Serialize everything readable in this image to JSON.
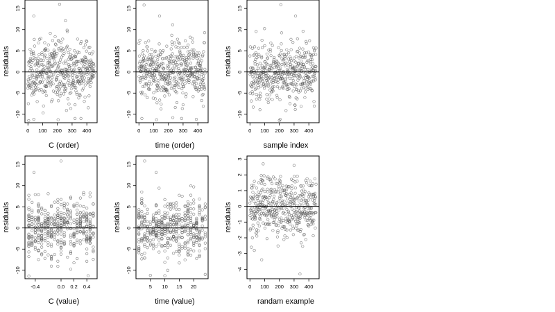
{
  "chart_data": [
    {
      "type": "scatter",
      "xlabel": "C (order)",
      "ylabel": "residuals",
      "xlim": [
        -20,
        470
      ],
      "ylim": [
        -12,
        17
      ],
      "xticks": [
        0,
        100,
        200,
        300,
        400
      ],
      "yticks": [
        -10,
        -5,
        0,
        5,
        10,
        15
      ],
      "xtick_labels": [
        "0",
        "100",
        "200",
        "300",
        "400"
      ],
      "ytick_labels": [
        "-10",
        "-5",
        "0",
        "5",
        "10",
        "15"
      ],
      "hline": 0,
      "x_kind": "index",
      "seed": 11,
      "n": 450,
      "sd": 3.4,
      "extreme_points": [
        [
          215,
          16.0
        ],
        [
          40,
          13.2
        ],
        [
          255,
          12.1
        ],
        [
          5,
          -11.5
        ],
        [
          360,
          -11.0
        ],
        [
          40,
          -11.2
        ],
        [
          205,
          -11.3
        ],
        [
          320,
          -11.0
        ]
      ]
    },
    {
      "type": "scatter",
      "xlabel": "time (order)",
      "ylabel": "residuals",
      "xlim": [
        -20,
        470
      ],
      "ylim": [
        -12,
        17
      ],
      "xticks": [
        0,
        100,
        200,
        300,
        400
      ],
      "yticks": [
        -10,
        -5,
        0,
        5,
        10,
        15
      ],
      "xtick_labels": [
        "0",
        "100",
        "200",
        "300",
        "400"
      ],
      "ytick_labels": [
        "-10",
        "-5",
        "0",
        "5",
        "10",
        "15"
      ],
      "hline": 0,
      "x_kind": "index",
      "seed": 23,
      "n": 450,
      "sd": 3.4,
      "extreme_points": [
        [
          35,
          15.8
        ],
        [
          140,
          13.2
        ],
        [
          20,
          -11.0
        ],
        [
          120,
          -11.3
        ],
        [
          230,
          -10.8
        ],
        [
          290,
          -11.0
        ],
        [
          390,
          -11.2
        ]
      ]
    },
    {
      "type": "scatter",
      "xlabel": "sample index",
      "ylabel": "residuals",
      "xlim": [
        -20,
        470
      ],
      "ylim": [
        -12,
        17
      ],
      "xticks": [
        0,
        100,
        200,
        300,
        400
      ],
      "yticks": [
        -10,
        -5,
        0,
        5,
        10,
        15
      ],
      "xtick_labels": [
        "0",
        "100",
        "200",
        "300",
        "400"
      ],
      "ytick_labels": [
        "-10",
        "-5",
        "0",
        "5",
        "10",
        "15"
      ],
      "hline": 0,
      "x_kind": "index",
      "seed": 37,
      "n": 450,
      "sd": 3.3,
      "extreme_points": [
        [
          210,
          15.9
        ],
        [
          310,
          13.2
        ],
        [
          205,
          -11.2
        ],
        [
          200,
          -11.5
        ],
        [
          305,
          -7.8
        ]
      ]
    },
    {
      "type": "scatter",
      "xlabel": "C (value)",
      "ylabel": "residuals",
      "xlim": [
        -0.56,
        0.56
      ],
      "ylim": [
        -12,
        17
      ],
      "xticks": [
        -0.4,
        0.0,
        0.2,
        0.4
      ],
      "yticks": [
        -10,
        -5,
        0,
        5,
        10,
        15
      ],
      "xtick_labels": [
        "-0.4",
        "0.0",
        "0.2",
        "0.4"
      ],
      "ytick_labels": [
        "-10",
        "-5",
        "0",
        "5",
        "10",
        "15"
      ],
      "hline": 0,
      "x_kind": "discrete",
      "x_levels": [
        -0.5,
        -0.45,
        -0.4,
        -0.35,
        -0.3,
        -0.25,
        -0.2,
        -0.15,
        -0.1,
        -0.05,
        0.0,
        0.05,
        0.1,
        0.15,
        0.2,
        0.25,
        0.3,
        0.35,
        0.4,
        0.45,
        0.5
      ],
      "seed": 53,
      "n": 450,
      "sd": 3.4,
      "extreme_points": [
        [
          -0.42,
          13.1
        ],
        [
          0.0,
          15.8
        ],
        [
          -0.5,
          -11.4
        ],
        [
          0.42,
          -11.3
        ]
      ]
    },
    {
      "type": "scatter",
      "xlabel": "time (value)",
      "ylabel": "residuals",
      "xlim": [
        0,
        25
      ],
      "ylim": [
        -12,
        17
      ],
      "xticks": [
        5,
        10,
        15,
        20
      ],
      "yticks": [
        -10,
        -5,
        0,
        5,
        10,
        15
      ],
      "xtick_labels": [
        "5",
        "10",
        "15",
        "20"
      ],
      "ytick_labels": [
        "-10",
        "-5",
        "0",
        "5",
        "10",
        "15"
      ],
      "hline": 0,
      "x_kind": "discrete",
      "x_levels": [
        1,
        2,
        3,
        4,
        5,
        6,
        7,
        8,
        9,
        10,
        11,
        12,
        13,
        14,
        15,
        16,
        17,
        18,
        19,
        20,
        21,
        22,
        23,
        24
      ],
      "seed": 71,
      "n": 450,
      "sd": 3.4,
      "extreme_points": [
        [
          3,
          15.8
        ],
        [
          7,
          13.1
        ],
        [
          5,
          -11.2
        ],
        [
          10,
          -11.3
        ],
        [
          24,
          -11.0
        ]
      ]
    },
    {
      "type": "scatter",
      "xlabel": "randam example",
      "ylabel": "residuals",
      "xlim": [
        -20,
        470
      ],
      "ylim": [
        -4.6,
        3.2
      ],
      "xticks": [
        0,
        100,
        200,
        300,
        400
      ],
      "yticks": [
        -4,
        -3,
        -2,
        -1,
        0,
        1,
        2,
        3
      ],
      "xtick_labels": [
        "0",
        "100",
        "200",
        "300",
        "400"
      ],
      "ytick_labels": [
        "-4",
        "-3",
        "-2",
        "-1",
        "0",
        "1",
        "2",
        "3"
      ],
      "hline": 0,
      "x_kind": "index",
      "seed": 97,
      "n": 450,
      "sd": 1.0,
      "extreme_points": [
        [
          90,
          2.7
        ],
        [
          300,
          2.6
        ],
        [
          80,
          -3.4
        ],
        [
          340,
          -4.3
        ],
        [
          10,
          -2.6
        ],
        [
          30,
          -2.8
        ]
      ]
    }
  ]
}
